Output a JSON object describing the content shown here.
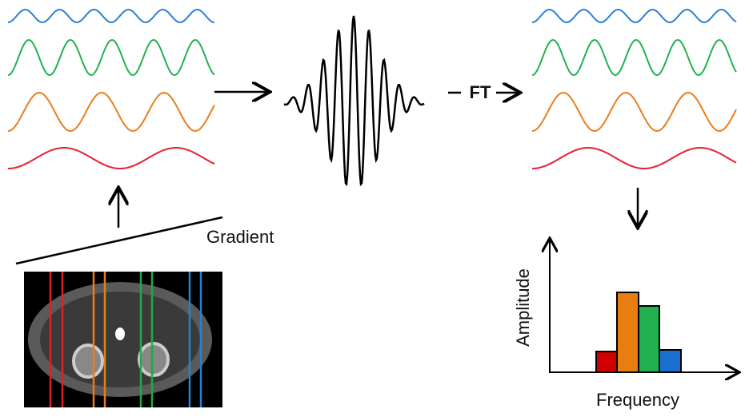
{
  "labels": {
    "ft": "FT",
    "gradient": "Gradient",
    "y_axis": "Amplitude",
    "x_axis": "Frequency"
  }
}
